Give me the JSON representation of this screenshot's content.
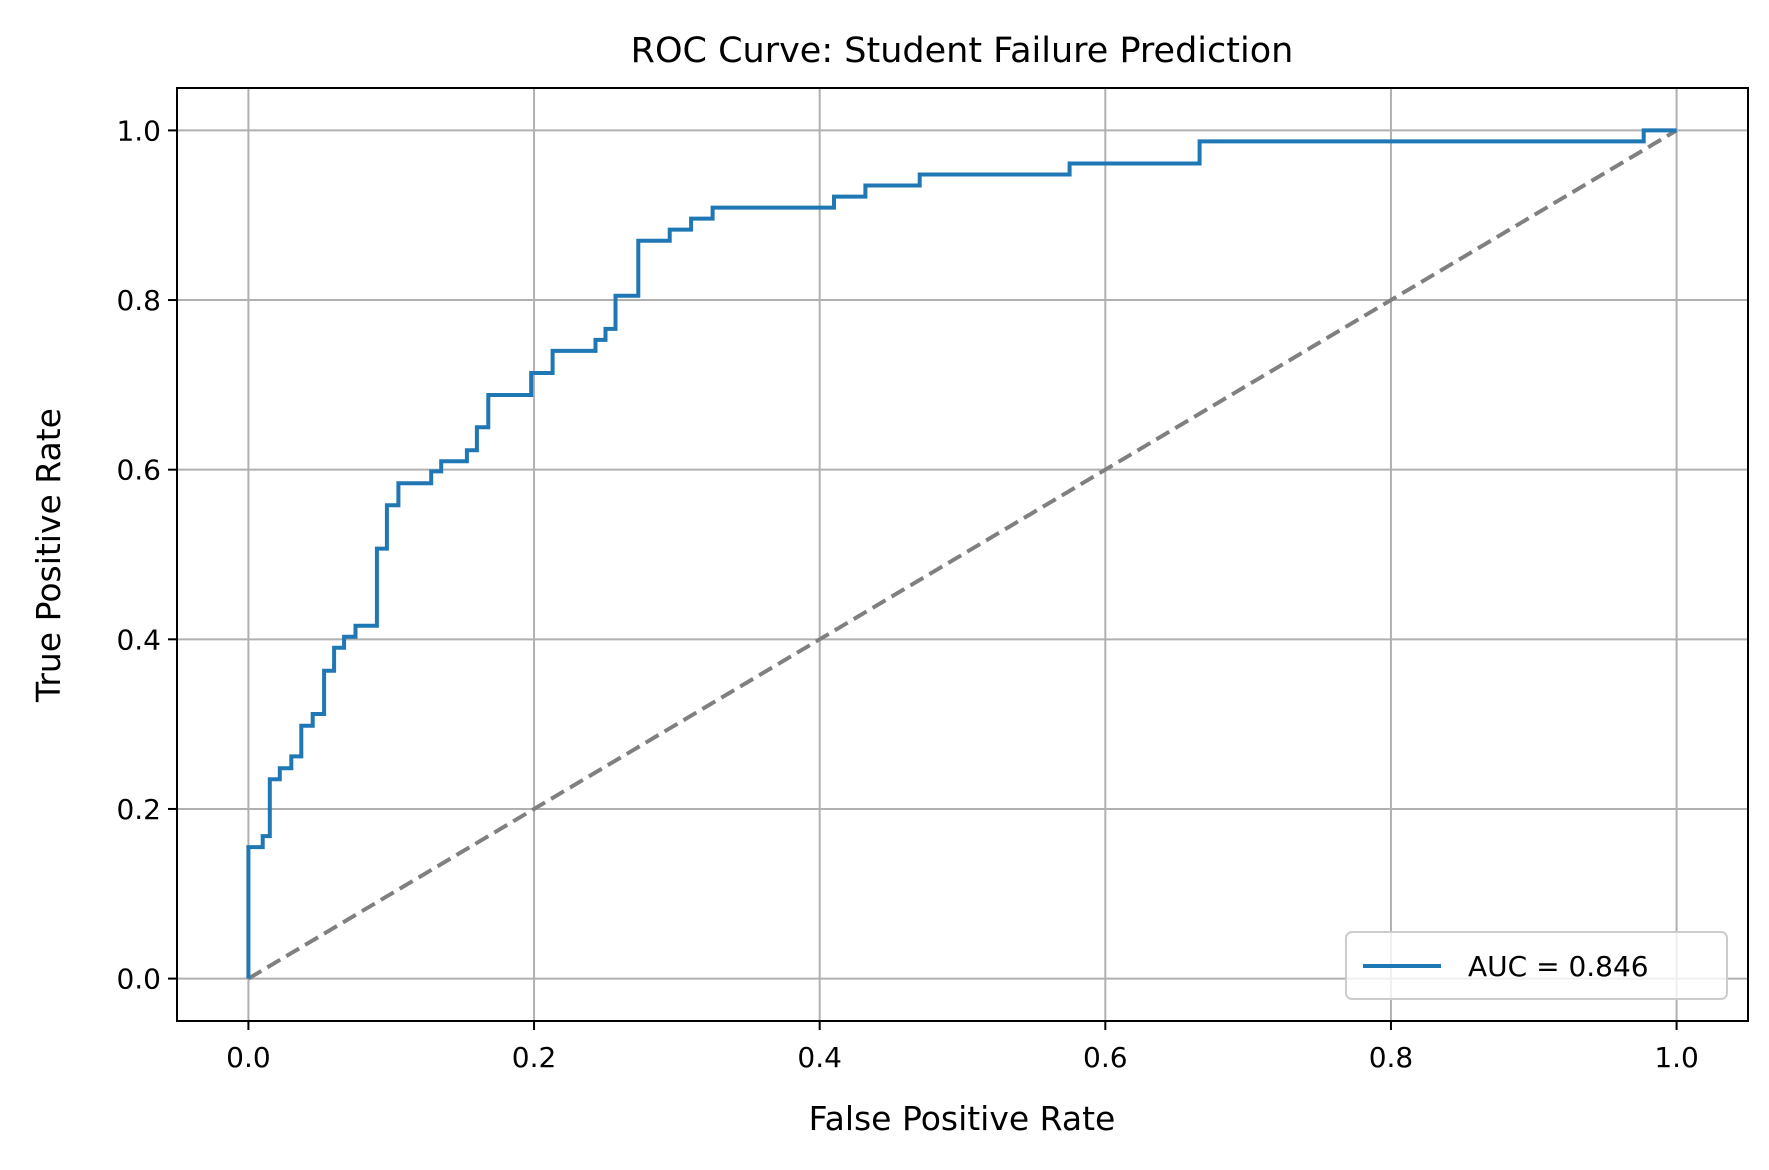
{
  "chart_data": {
    "type": "line",
    "title": "ROC Curve: Student Failure Prediction",
    "xlabel": "False Positive Rate",
    "ylabel": "True Positive Rate",
    "xlim": [
      -0.05,
      1.05
    ],
    "ylim": [
      -0.05,
      1.05
    ],
    "xticks": [
      "0.0",
      "0.2",
      "0.4",
      "0.6",
      "0.8",
      "1.0"
    ],
    "yticks": [
      "0.0",
      "0.2",
      "0.4",
      "0.6",
      "0.8",
      "1.0"
    ],
    "grid": true,
    "legend_position": "lower-right",
    "series": [
      {
        "name": "AUC = 0.846",
        "color": "#1f77b4",
        "style": "solid",
        "x": [
          0.0,
          0.0,
          0.0,
          0.01,
          0.01,
          0.015,
          0.015,
          0.022,
          0.022,
          0.03,
          0.03,
          0.037,
          0.037,
          0.045,
          0.045,
          0.053,
          0.053,
          0.06,
          0.06,
          0.067,
          0.067,
          0.075,
          0.075,
          0.09,
          0.09,
          0.097,
          0.097,
          0.105,
          0.105,
          0.128,
          0.128,
          0.135,
          0.135,
          0.153,
          0.153,
          0.16,
          0.16,
          0.168,
          0.168,
          0.198,
          0.198,
          0.213,
          0.213,
          0.243,
          0.243,
          0.25,
          0.25,
          0.257,
          0.257,
          0.273,
          0.273,
          0.295,
          0.295,
          0.31,
          0.31,
          0.325,
          0.325,
          0.41,
          0.41,
          0.432,
          0.432,
          0.47,
          0.47,
          0.575,
          0.575,
          0.666,
          0.666,
          0.977,
          0.977,
          1.0
        ],
        "y": [
          0.0,
          0.0,
          0.155,
          0.155,
          0.168,
          0.168,
          0.235,
          0.235,
          0.248,
          0.248,
          0.262,
          0.262,
          0.298,
          0.298,
          0.312,
          0.312,
          0.363,
          0.363,
          0.39,
          0.39,
          0.403,
          0.403,
          0.416,
          0.416,
          0.507,
          0.507,
          0.558,
          0.558,
          0.584,
          0.584,
          0.598,
          0.598,
          0.61,
          0.61,
          0.623,
          0.623,
          0.65,
          0.65,
          0.688,
          0.688,
          0.714,
          0.714,
          0.74,
          0.74,
          0.753,
          0.753,
          0.766,
          0.766,
          0.805,
          0.805,
          0.87,
          0.87,
          0.883,
          0.883,
          0.896,
          0.896,
          0.909,
          0.909,
          0.922,
          0.922,
          0.935,
          0.935,
          0.948,
          0.948,
          0.961,
          0.961,
          0.987,
          0.987,
          1.0,
          1.0
        ]
      },
      {
        "name": "",
        "color": "#808080",
        "style": "dashed",
        "x": [
          0.0,
          1.0
        ],
        "y": [
          0.0,
          1.0
        ]
      }
    ]
  }
}
